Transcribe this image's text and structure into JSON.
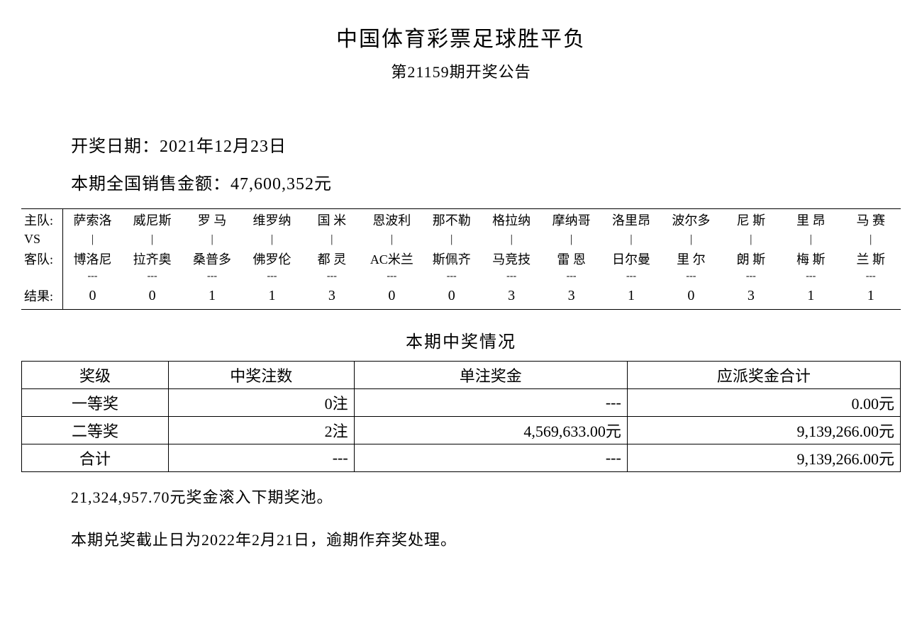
{
  "title": "中国体育彩票足球胜平负",
  "subtitle": "第21159期开奖公告",
  "draw_date_label": "开奖日期：",
  "draw_date": "2021年12月23日",
  "sales_label": "本期全国销售金额：",
  "sales_amount": "47,600,352元",
  "match_labels": {
    "home": "主队:",
    "vs": "VS",
    "away": "客队:",
    "result": "结果:"
  },
  "matches": {
    "home": [
      "萨索洛",
      "威尼斯",
      "罗 马",
      "维罗纳",
      "国 米",
      "恩波利",
      "那不勒",
      "格拉纳",
      "摩纳哥",
      "洛里昂",
      "波尔多",
      "尼 斯",
      "里 昂",
      "马 赛"
    ],
    "away": [
      "博洛尼",
      "拉齐奥",
      "桑普多",
      "佛罗伦",
      "都 灵",
      "AC米兰",
      "斯佩齐",
      "马竞技",
      "雷 恩",
      "日尔曼",
      "里 尔",
      "朗 斯",
      "梅 斯",
      "兰 斯"
    ],
    "result": [
      "0",
      "0",
      "1",
      "1",
      "3",
      "0",
      "0",
      "3",
      "3",
      "1",
      "0",
      "3",
      "1",
      "1"
    ]
  },
  "prize_section_title": "本期中奖情况",
  "prize_table": {
    "columns": [
      "奖级",
      "中奖注数",
      "单注奖金",
      "应派奖金合计"
    ],
    "rows": [
      {
        "level": "一等奖",
        "count": "0注",
        "unit": "---",
        "total": "0.00元"
      },
      {
        "level": "二等奖",
        "count": "2注",
        "unit": "4,569,633.00元",
        "total": "9,139,266.00元"
      },
      {
        "level": "合计",
        "count": "---",
        "unit": "---",
        "total": "9,139,266.00元"
      }
    ]
  },
  "rollover": "21,324,957.70元奖金滚入下期奖池。",
  "deadline": "本期兑奖截止日为2022年2月21日，逾期作弃奖处理。",
  "vs_sep": "|",
  "dash": "---"
}
